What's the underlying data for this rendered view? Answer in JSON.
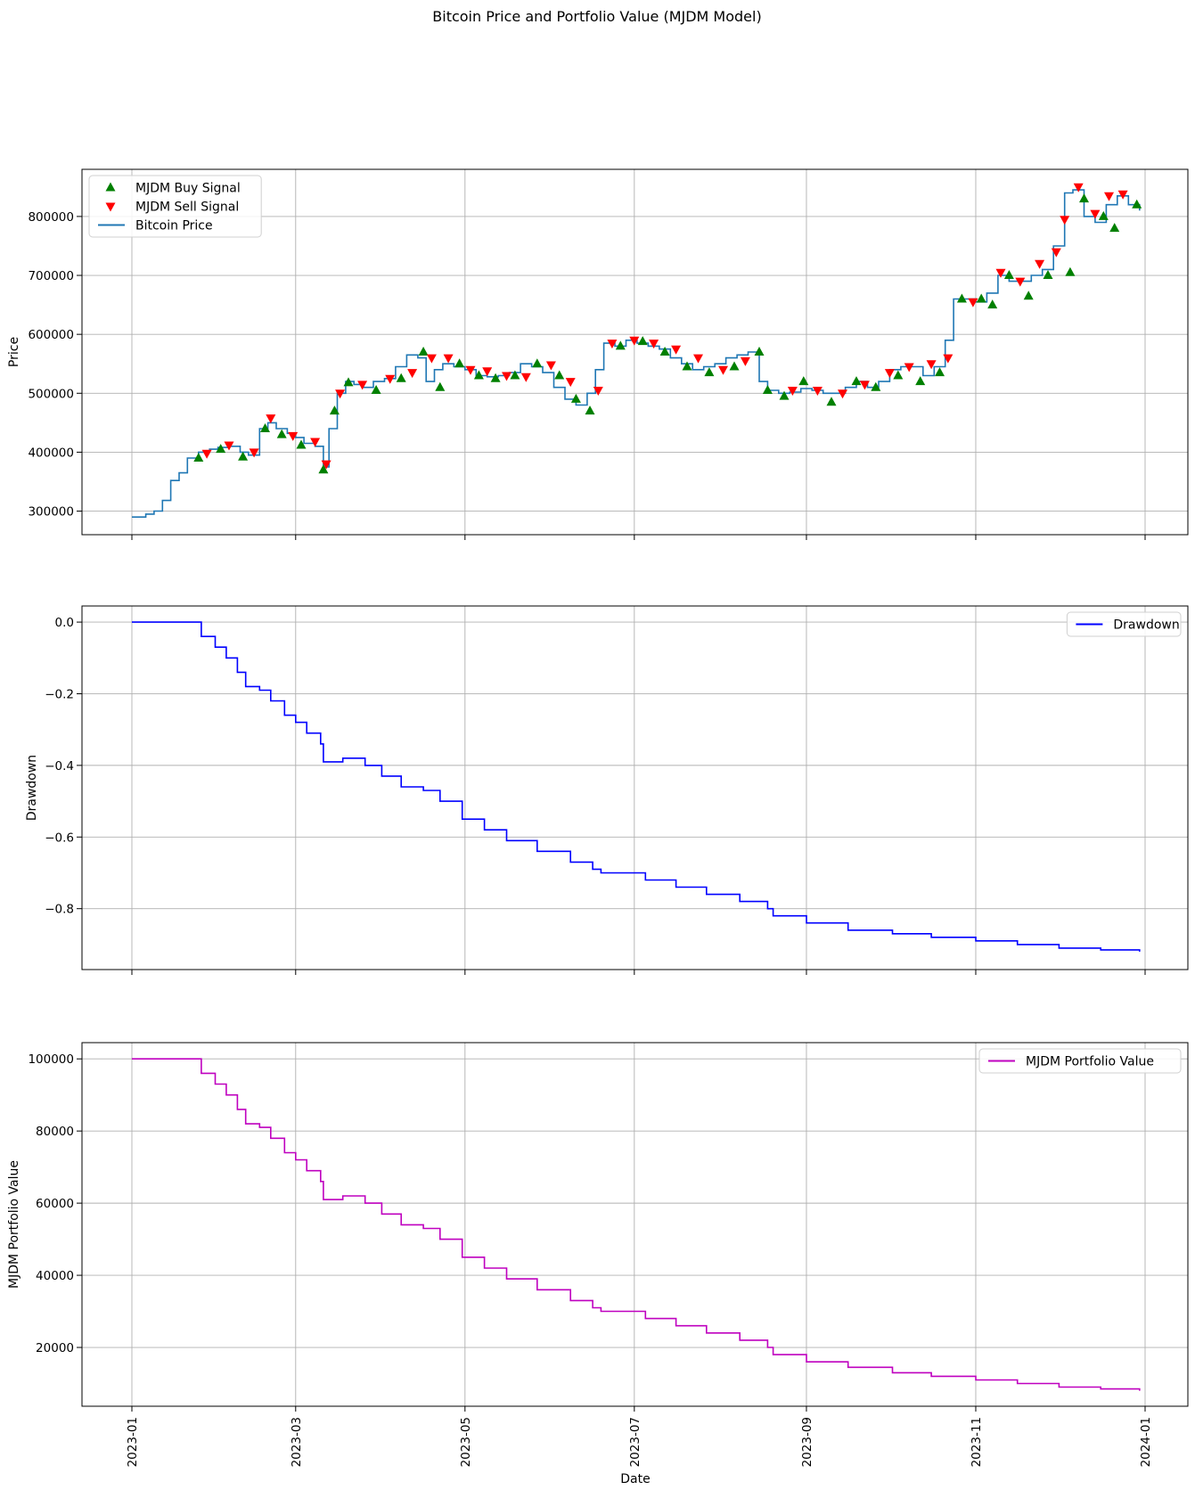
{
  "figure": {
    "title": "Bitcoin Price and Portfolio Value (MJDM Model)",
    "xlabel": "Date",
    "xticks": [
      "2023-01",
      "2023-03",
      "2023-05",
      "2023-07",
      "2023-09",
      "2023-11",
      "2024-01"
    ]
  },
  "colors": {
    "price": "#1f77b4",
    "buy": "#008000",
    "sell": "#ff0000",
    "drawdown": "#0000ff",
    "portfolio": "#bf00bf",
    "grid": "#b0b0b0"
  },
  "chart_data": [
    {
      "type": "line",
      "ylabel": "Price",
      "ylim": [
        260000,
        880000
      ],
      "yticks": [
        300000,
        400000,
        500000,
        600000,
        700000,
        800000
      ],
      "grid": true,
      "legend_position": "upper-left",
      "legend": [
        "MJDM Buy Signal",
        "MJDM Sell Signal",
        "Bitcoin Price"
      ],
      "series": [
        {
          "name": "Bitcoin Price",
          "x": [
            "2023-01-01",
            "2023-01-03",
            "2023-01-06",
            "2023-01-09",
            "2023-01-12",
            "2023-01-15",
            "2023-01-18",
            "2023-01-21",
            "2023-01-25",
            "2023-01-29",
            "2023-02-01",
            "2023-02-05",
            "2023-02-09",
            "2023-02-12",
            "2023-02-16",
            "2023-02-19",
            "2023-02-22",
            "2023-02-26",
            "2023-03-01",
            "2023-03-04",
            "2023-03-08",
            "2023-03-11",
            "2023-03-13",
            "2023-03-16",
            "2023-03-19",
            "2023-03-22",
            "2023-03-25",
            "2023-03-29",
            "2023-04-02",
            "2023-04-06",
            "2023-04-10",
            "2023-04-14",
            "2023-04-17",
            "2023-04-20",
            "2023-04-23",
            "2023-04-27",
            "2023-05-01",
            "2023-05-05",
            "2023-05-09",
            "2023-05-13",
            "2023-05-17",
            "2023-05-21",
            "2023-05-25",
            "2023-05-29",
            "2023-06-02",
            "2023-06-06",
            "2023-06-10",
            "2023-06-14",
            "2023-06-17",
            "2023-06-20",
            "2023-06-24",
            "2023-06-28",
            "2023-07-02",
            "2023-07-06",
            "2023-07-10",
            "2023-07-14",
            "2023-07-18",
            "2023-07-22",
            "2023-07-26",
            "2023-07-30",
            "2023-08-03",
            "2023-08-07",
            "2023-08-11",
            "2023-08-15",
            "2023-08-18",
            "2023-08-22",
            "2023-08-26",
            "2023-08-30",
            "2023-09-03",
            "2023-09-07",
            "2023-09-11",
            "2023-09-15",
            "2023-09-19",
            "2023-09-23",
            "2023-09-27",
            "2023-10-01",
            "2023-10-05",
            "2023-10-09",
            "2023-10-13",
            "2023-10-17",
            "2023-10-21",
            "2023-10-24",
            "2023-10-28",
            "2023-11-01",
            "2023-11-05",
            "2023-11-09",
            "2023-11-13",
            "2023-11-17",
            "2023-11-21",
            "2023-11-25",
            "2023-11-29",
            "2023-12-03",
            "2023-12-06",
            "2023-12-10",
            "2023-12-14",
            "2023-12-18",
            "2023-12-22",
            "2023-12-26",
            "2023-12-30"
          ],
          "y": [
            290000,
            290000,
            295000,
            300000,
            318000,
            352000,
            365000,
            390000,
            400000,
            405000,
            408000,
            410000,
            400000,
            395000,
            440000,
            450000,
            440000,
            432000,
            425000,
            415000,
            410000,
            375000,
            440000,
            500000,
            520000,
            515000,
            510000,
            520000,
            525000,
            545000,
            565000,
            560000,
            520000,
            540000,
            550000,
            545000,
            540000,
            530000,
            528000,
            530000,
            535000,
            550000,
            545000,
            535000,
            510000,
            490000,
            480000,
            500000,
            540000,
            585000,
            580000,
            590000,
            585000,
            580000,
            575000,
            560000,
            550000,
            540000,
            545000,
            550000,
            560000,
            565000,
            570000,
            520000,
            505000,
            500000,
            502000,
            508000,
            505000,
            500000,
            500000,
            510000,
            520000,
            510000,
            520000,
            540000,
            545000,
            545000,
            530000,
            545000,
            590000,
            660000,
            660000,
            655000,
            670000,
            700000,
            690000,
            690000,
            700000,
            710000,
            750000,
            840000,
            845000,
            800000,
            790000,
            820000,
            835000,
            820000,
            810000
          ]
        },
        {
          "name": "MJDM Buy Signal",
          "x": [
            "2023-01-25",
            "2023-02-02",
            "2023-02-10",
            "2023-02-18",
            "2023-02-24",
            "2023-03-03",
            "2023-03-11",
            "2023-03-15",
            "2023-03-20",
            "2023-03-30",
            "2023-04-08",
            "2023-04-16",
            "2023-04-22",
            "2023-04-29",
            "2023-05-06",
            "2023-05-12",
            "2023-05-19",
            "2023-05-27",
            "2023-06-04",
            "2023-06-10",
            "2023-06-15",
            "2023-06-26",
            "2023-07-04",
            "2023-07-12",
            "2023-07-20",
            "2023-07-28",
            "2023-08-06",
            "2023-08-15",
            "2023-08-18",
            "2023-08-24",
            "2023-08-31",
            "2023-09-10",
            "2023-09-19",
            "2023-09-26",
            "2023-10-04",
            "2023-10-12",
            "2023-10-19",
            "2023-10-27",
            "2023-11-03",
            "2023-11-07",
            "2023-11-13",
            "2023-11-20",
            "2023-11-27",
            "2023-12-05",
            "2023-12-10",
            "2023-12-17",
            "2023-12-21",
            "2023-12-29"
          ],
          "y": [
            390000,
            405000,
            392000,
            440000,
            430000,
            412000,
            370000,
            470000,
            518000,
            505000,
            525000,
            570000,
            510000,
            550000,
            530000,
            525000,
            530000,
            550000,
            530000,
            490000,
            470000,
            580000,
            588000,
            570000,
            545000,
            535000,
            545000,
            570000,
            505000,
            495000,
            520000,
            485000,
            520000,
            510000,
            530000,
            520000,
            535000,
            660000,
            660000,
            650000,
            700000,
            665000,
            700000,
            705000,
            830000,
            800000,
            780000,
            820000
          ]
        },
        {
          "name": "MJDM Sell Signal",
          "x": [
            "2023-01-28",
            "2023-02-05",
            "2023-02-14",
            "2023-02-20",
            "2023-02-28",
            "2023-03-08",
            "2023-03-12",
            "2023-03-17",
            "2023-03-25",
            "2023-04-04",
            "2023-04-12",
            "2023-04-19",
            "2023-04-25",
            "2023-05-03",
            "2023-05-09",
            "2023-05-16",
            "2023-05-23",
            "2023-06-01",
            "2023-06-08",
            "2023-06-18",
            "2023-06-23",
            "2023-07-01",
            "2023-07-08",
            "2023-07-16",
            "2023-07-24",
            "2023-08-02",
            "2023-08-10",
            "2023-08-27",
            "2023-09-05",
            "2023-09-14",
            "2023-09-22",
            "2023-10-01",
            "2023-10-08",
            "2023-10-16",
            "2023-10-22",
            "2023-10-31",
            "2023-11-10",
            "2023-11-17",
            "2023-11-24",
            "2023-11-30",
            "2023-12-03",
            "2023-12-08",
            "2023-12-14",
            "2023-12-19",
            "2023-12-24"
          ],
          "y": [
            398000,
            412000,
            400000,
            458000,
            428000,
            418000,
            380000,
            500000,
            515000,
            525000,
            535000,
            560000,
            560000,
            540000,
            538000,
            530000,
            528000,
            548000,
            520000,
            505000,
            585000,
            590000,
            585000,
            575000,
            560000,
            540000,
            555000,
            505000,
            505000,
            500000,
            515000,
            535000,
            545000,
            550000,
            560000,
            655000,
            705000,
            690000,
            720000,
            740000,
            795000,
            850000,
            805000,
            835000,
            838000
          ]
        }
      ]
    },
    {
      "type": "line",
      "ylabel": "Drawdown",
      "ylim": [
        -0.97,
        0.045
      ],
      "yticks": [
        0.0,
        -0.2,
        -0.4,
        -0.6,
        -0.8
      ],
      "ytick_labels": [
        "0.0",
        "−0.2",
        "−0.4",
        "−0.6",
        "−0.8"
      ],
      "grid": true,
      "legend_position": "upper-right",
      "series": [
        {
          "name": "Drawdown",
          "x": [
            "2023-01-01",
            "2023-01-21",
            "2023-01-26",
            "2023-01-31",
            "2023-02-04",
            "2023-02-08",
            "2023-02-11",
            "2023-02-16",
            "2023-02-20",
            "2023-02-25",
            "2023-03-01",
            "2023-03-05",
            "2023-03-10",
            "2023-03-11",
            "2023-03-18",
            "2023-03-26",
            "2023-04-01",
            "2023-04-08",
            "2023-04-16",
            "2023-04-22",
            "2023-04-30",
            "2023-05-08",
            "2023-05-16",
            "2023-05-27",
            "2023-06-08",
            "2023-06-16",
            "2023-06-19",
            "2023-06-26",
            "2023-07-05",
            "2023-07-16",
            "2023-07-27",
            "2023-08-08",
            "2023-08-18",
            "2023-08-20",
            "2023-09-01",
            "2023-09-16",
            "2023-10-02",
            "2023-10-16",
            "2023-11-01",
            "2023-11-16",
            "2023-12-01",
            "2023-12-16",
            "2023-12-30"
          ],
          "y": [
            0.0,
            0.0,
            -0.04,
            -0.07,
            -0.1,
            -0.14,
            -0.18,
            -0.19,
            -0.22,
            -0.26,
            -0.28,
            -0.31,
            -0.34,
            -0.39,
            -0.38,
            -0.4,
            -0.43,
            -0.46,
            -0.47,
            -0.5,
            -0.55,
            -0.58,
            -0.61,
            -0.64,
            -0.67,
            -0.69,
            -0.7,
            -0.7,
            -0.72,
            -0.74,
            -0.76,
            -0.78,
            -0.8,
            -0.82,
            -0.84,
            -0.86,
            -0.87,
            -0.88,
            -0.89,
            -0.9,
            -0.91,
            -0.915,
            -0.92
          ]
        }
      ]
    },
    {
      "type": "line",
      "ylabel": "MJDM Portfolio Value",
      "ylim": [
        3700,
        104500
      ],
      "yticks": [
        20000,
        40000,
        60000,
        80000,
        100000
      ],
      "grid": true,
      "legend_position": "upper-right",
      "series": [
        {
          "name": "MJDM Portfolio Value",
          "x": [
            "2023-01-01",
            "2023-01-21",
            "2023-01-26",
            "2023-01-31",
            "2023-02-04",
            "2023-02-08",
            "2023-02-11",
            "2023-02-16",
            "2023-02-20",
            "2023-02-25",
            "2023-03-01",
            "2023-03-05",
            "2023-03-10",
            "2023-03-11",
            "2023-03-18",
            "2023-03-26",
            "2023-04-01",
            "2023-04-08",
            "2023-04-16",
            "2023-04-22",
            "2023-04-30",
            "2023-05-08",
            "2023-05-16",
            "2023-05-27",
            "2023-06-08",
            "2023-06-16",
            "2023-06-19",
            "2023-06-26",
            "2023-07-05",
            "2023-07-16",
            "2023-07-27",
            "2023-08-08",
            "2023-08-18",
            "2023-08-20",
            "2023-09-01",
            "2023-09-16",
            "2023-10-02",
            "2023-10-16",
            "2023-11-01",
            "2023-11-16",
            "2023-12-01",
            "2023-12-16",
            "2023-12-30"
          ],
          "y": [
            100000,
            100000,
            96000,
            93000,
            90000,
            86000,
            82000,
            81000,
            78000,
            74000,
            72000,
            69000,
            66000,
            61000,
            62000,
            60000,
            57000,
            54000,
            53000,
            50000,
            45000,
            42000,
            39000,
            36000,
            33000,
            31000,
            30000,
            30000,
            28000,
            26000,
            24000,
            22000,
            20000,
            18000,
            16000,
            14500,
            13000,
            12000,
            11000,
            10000,
            9000,
            8500,
            8000
          ]
        }
      ]
    }
  ]
}
